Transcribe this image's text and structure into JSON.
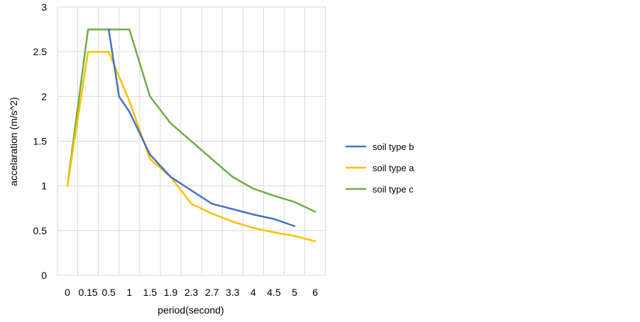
{
  "chart_data": {
    "type": "line",
    "title": "",
    "xlabel": "period(second)",
    "ylabel": "accelaration (m/s^2)",
    "categories": [
      "0",
      "0.15",
      "0.5",
      "1",
      "1.5",
      "1.9",
      "2.3",
      "2.7",
      "3.3",
      "4",
      "4.5",
      "5",
      "6"
    ],
    "ylim": [
      0,
      3
    ],
    "yticks": [
      "0",
      "0.5",
      "1",
      "1.5",
      "2",
      "2.5",
      "3"
    ],
    "grid": true,
    "legend_position": "right",
    "series": [
      {
        "name": "soil type b",
        "color": "#4472C4",
        "points": [
          {
            "x": 2.0,
            "y": 2.75
          },
          {
            "x": 2.5,
            "y": 2.0
          },
          {
            "x": 3.0,
            "y": 1.83
          },
          {
            "x": 4.0,
            "y": 1.35
          },
          {
            "x": 5.0,
            "y": 1.1
          },
          {
            "x": 6.0,
            "y": 0.95
          },
          {
            "x": 7.0,
            "y": 0.8
          },
          {
            "x": 8.0,
            "y": 0.74
          },
          {
            "x": 9.0,
            "y": 0.68
          },
          {
            "x": 10.0,
            "y": 0.63
          },
          {
            "x": 11.0,
            "y": 0.55
          }
        ]
      },
      {
        "name": "soil type a",
        "color": "#FFC000",
        "points": [
          {
            "x": 0,
            "y": 1.0
          },
          {
            "x": 1.0,
            "y": 2.5
          },
          {
            "x": 2.0,
            "y": 2.5
          },
          {
            "x": 3.0,
            "y": 1.95
          },
          {
            "x": 4.0,
            "y": 1.3
          },
          {
            "x": 5.0,
            "y": 1.1
          },
          {
            "x": 6.0,
            "y": 0.8
          },
          {
            "x": 7.0,
            "y": 0.69
          },
          {
            "x": 8.0,
            "y": 0.6
          },
          {
            "x": 9.0,
            "y": 0.53
          },
          {
            "x": 10.0,
            "y": 0.48
          },
          {
            "x": 11.0,
            "y": 0.44
          },
          {
            "x": 12.0,
            "y": 0.38
          }
        ]
      },
      {
        "name": "soil type c",
        "color": "#70AD47",
        "points": [
          {
            "x": 0,
            "y": 1.0
          },
          {
            "x": 1.0,
            "y": 2.75
          },
          {
            "x": 3.0,
            "y": 2.75
          },
          {
            "x": 4.0,
            "y": 2.0
          },
          {
            "x": 5.0,
            "y": 1.7
          },
          {
            "x": 6.0,
            "y": 1.5
          },
          {
            "x": 7.0,
            "y": 1.3
          },
          {
            "x": 8.0,
            "y": 1.1
          },
          {
            "x": 9.0,
            "y": 0.97
          },
          {
            "x": 10.0,
            "y": 0.89
          },
          {
            "x": 11.0,
            "y": 0.82
          },
          {
            "x": 12.0,
            "y": 0.71
          }
        ]
      }
    ],
    "legend": [
      {
        "label": "soil type b",
        "color": "#4472C4"
      },
      {
        "label": "soil type a",
        "color": "#FFC000"
      },
      {
        "label": "soil type c",
        "color": "#70AD47"
      }
    ]
  }
}
